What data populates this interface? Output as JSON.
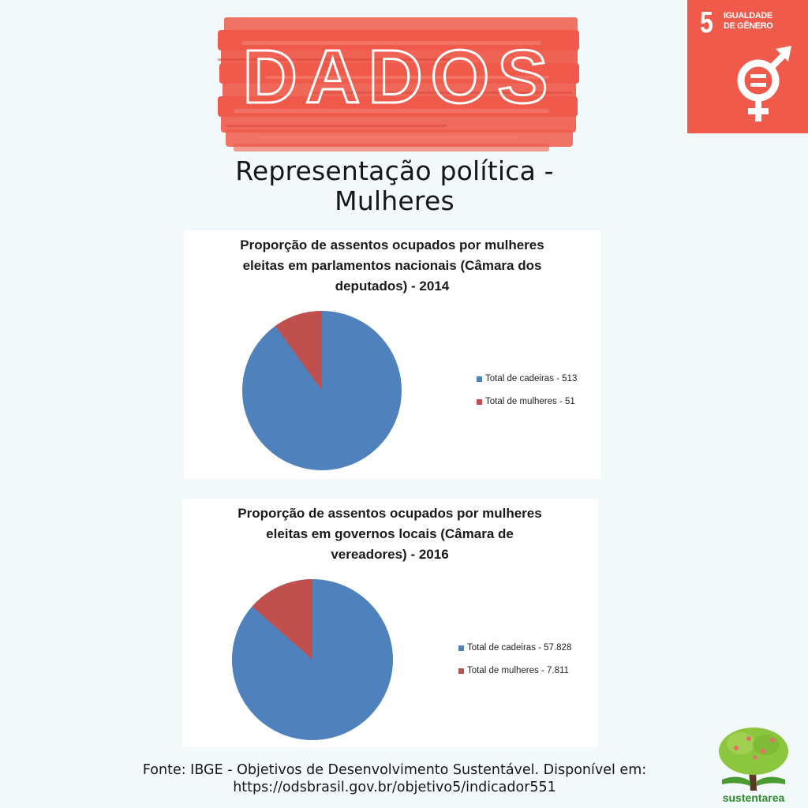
{
  "header": {
    "banner_text": "DADOS",
    "banner_color": "#ef5a4a"
  },
  "sdg_badge": {
    "number": "5",
    "label_line1": "IGUALDADE",
    "label_line2": "DE GÊNERO",
    "icon": "gender-equality-icon",
    "color": "#ef5a4a"
  },
  "main_title": {
    "line1": "Representação política -",
    "line2": "Mulheres"
  },
  "chart_data": [
    {
      "type": "pie",
      "title": "Proporção de assentos ocupados por mulheres eleitas em parlamentos nacionais (Câmara dos deputados) - 2014",
      "title_lines": [
        "Proporção de assentos ocupados por mulheres",
        "eleitas em parlamentos nacionais (Câmara dos",
        "deputados) - 2014"
      ],
      "slices": [
        {
          "label": "Total de cadeiras - 513",
          "value": 513,
          "color": "#4f81bd"
        },
        {
          "label": "Total de mulheres - 51",
          "value": 51,
          "color": "#c0504d"
        }
      ],
      "legend_position": "right"
    },
    {
      "type": "pie",
      "title": "Proporção de assentos ocupados por mulheres eleitas em governos locais (Câmara de vereadores) - 2016",
      "title_lines": [
        "Proporção de assentos ocupados por mulheres",
        "eleitas em governos locais (Câmara de",
        "vereadores) - 2016"
      ],
      "slices": [
        {
          "label": "Total de cadeiras - 57.828",
          "value": 57828,
          "color": "#4f81bd"
        },
        {
          "label": "Total de mulheres - 7.811",
          "value": 7811,
          "color": "#c0504d"
        }
      ],
      "legend_position": "right"
    }
  ],
  "source": {
    "line1": "Fonte:  IBGE - Objetivos de Desenvolvimento Sustentável. Disponível em:",
    "line2": "https://odsbrasil.gov.br/objetivo5/indicador551"
  },
  "logo": {
    "text": "sustentarea",
    "icon": "tree-icon"
  }
}
